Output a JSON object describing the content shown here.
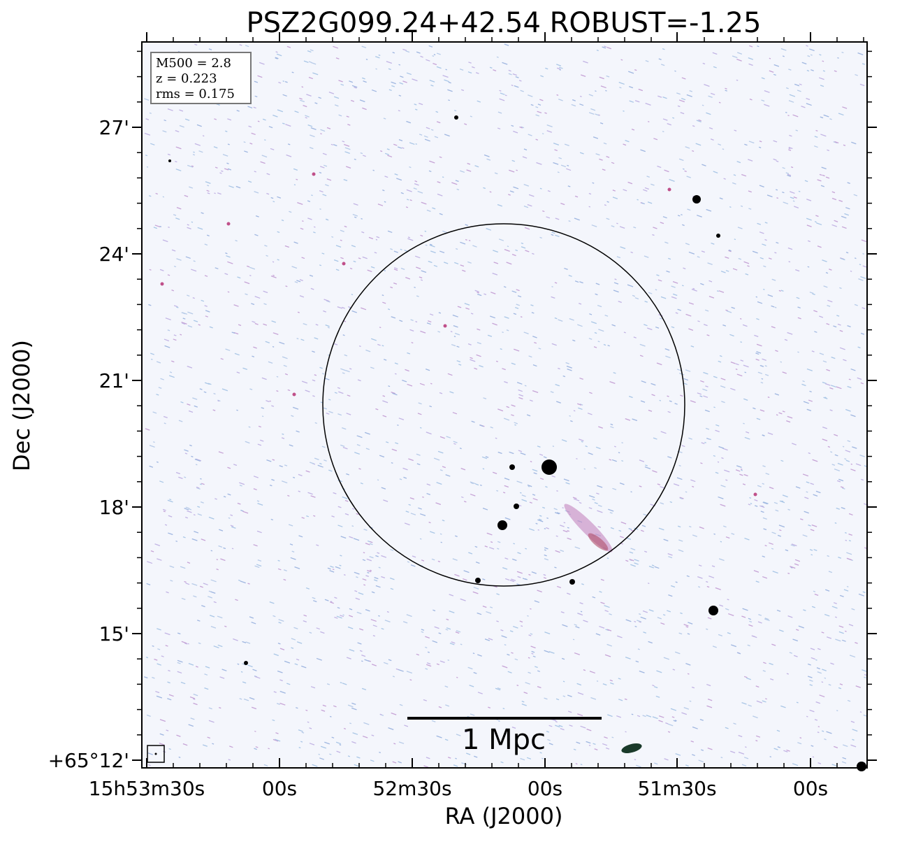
{
  "title": "PSZ2G099.24+42.54 ROBUST=-1.25",
  "x_axis": {
    "label": "RA (J2000)",
    "ticks": [
      "15h53m30s",
      "00s",
      "52m30s",
      "00s",
      "51m30s",
      "00s"
    ]
  },
  "y_axis": {
    "label": "Dec (J2000)",
    "ticks": [
      "27'",
      "24'",
      "21'",
      "18'",
      "15'",
      "+65°12'"
    ]
  },
  "info_box": [
    "M500 = 2.8",
    "z = 0.223",
    "rms = 0.175"
  ],
  "scale_bar": {
    "label": "1 Mpc"
  }
}
